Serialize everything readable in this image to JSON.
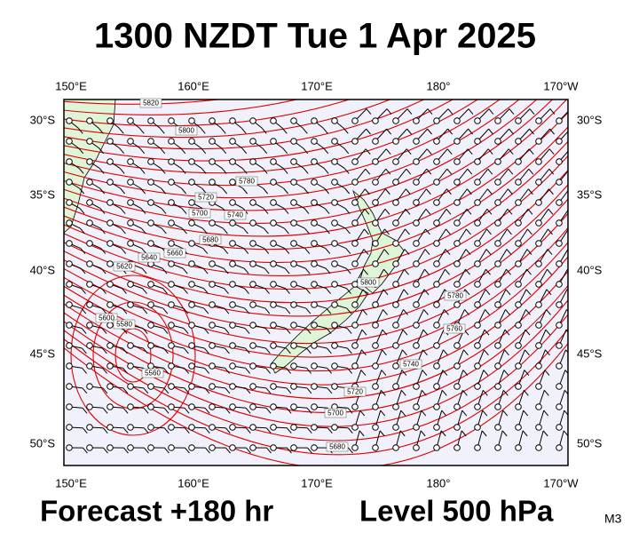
{
  "header": {
    "title": "1300 NZDT Tue 1 Apr 2025"
  },
  "map": {
    "lon_labels": [
      "150°E",
      "160°E",
      "170°E",
      "180°",
      "170°W"
    ],
    "lat_labels": [
      "30°S",
      "35°S",
      "40°S",
      "45°S",
      "50°S"
    ],
    "contour_labels": [
      "5820",
      "5800",
      "5780",
      "5740",
      "5720",
      "5700",
      "5680",
      "5660",
      "5640",
      "5620",
      "5600",
      "5580",
      "5560",
      "5800",
      "5780",
      "5760",
      "5740",
      "5720",
      "5700",
      "5680"
    ]
  },
  "footer": {
    "forecast": "Forecast +180 hr",
    "level": "Level 500 hPa",
    "model": "M3"
  }
}
